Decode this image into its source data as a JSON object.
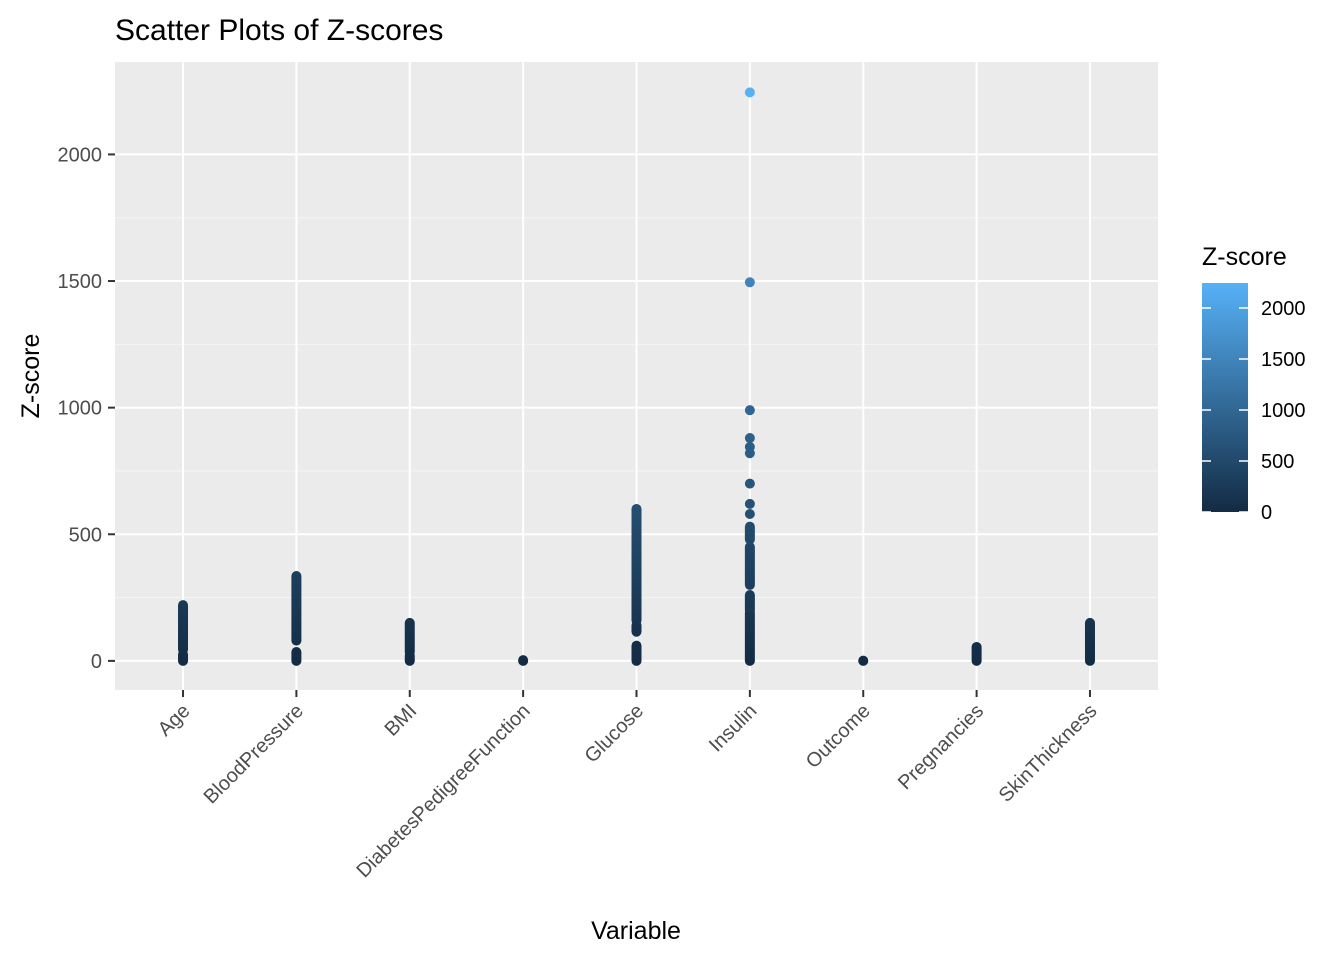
{
  "chart_data": {
    "type": "scatter",
    "title": "Scatter Plots of Z-scores",
    "xlabel": "Variable",
    "ylabel": "Z-score",
    "ylim": [
      -115,
      2365
    ],
    "yticks": [
      0,
      500,
      1000,
      1500,
      2000
    ],
    "grid": true,
    "categories": [
      "Age",
      "BloodPressure",
      "BMI",
      "DiabetesPedigreeFunction",
      "Glucose",
      "Insulin",
      "Outcome",
      "Pregnancies",
      "SkinThickness"
    ],
    "series": [
      {
        "category": "Age",
        "ranges": [
          [
            0,
            25
          ],
          [
            45,
            220
          ]
        ],
        "values": []
      },
      {
        "category": "BloodPressure",
        "ranges": [
          [
            0,
            35
          ],
          [
            80,
            335
          ]
        ],
        "values": []
      },
      {
        "category": "BMI",
        "ranges": [
          [
            0,
            20
          ],
          [
            35,
            150
          ]
        ],
        "values": []
      },
      {
        "category": "DiabetesPedigreeFunction",
        "ranges": [
          [
            0,
            3
          ]
        ],
        "values": []
      },
      {
        "category": "Glucose",
        "ranges": [
          [
            0,
            60
          ],
          [
            115,
            140
          ],
          [
            160,
            600
          ]
        ],
        "values": []
      },
      {
        "category": "Insulin",
        "ranges": [
          [
            0,
            190
          ],
          [
            200,
            260
          ],
          [
            300,
            450
          ],
          [
            480,
            530
          ]
        ],
        "values": [
          580,
          620,
          700,
          820,
          845,
          880,
          990,
          1495,
          2245
        ]
      },
      {
        "category": "Outcome",
        "ranges": [
          [
            0,
            1
          ]
        ],
        "values": []
      },
      {
        "category": "Pregnancies",
        "ranges": [
          [
            0,
            55
          ]
        ],
        "values": []
      },
      {
        "category": "SkinThickness",
        "ranges": [
          [
            0,
            150
          ]
        ],
        "values": []
      }
    ],
    "legend": {
      "title": "Z-score",
      "position": "right",
      "min": 0,
      "max": 2245,
      "ticks": [
        0,
        500,
        1000,
        1500,
        2000
      ],
      "color_low": "#132B43",
      "color_high": "#56B1F7"
    },
    "colors": {
      "panel": "#EBEBEB",
      "grid_major": "#FFFFFF",
      "grid_minor": "#F5F5F5",
      "tick_text": "#4D4D4D",
      "title_text": "#000000"
    }
  }
}
